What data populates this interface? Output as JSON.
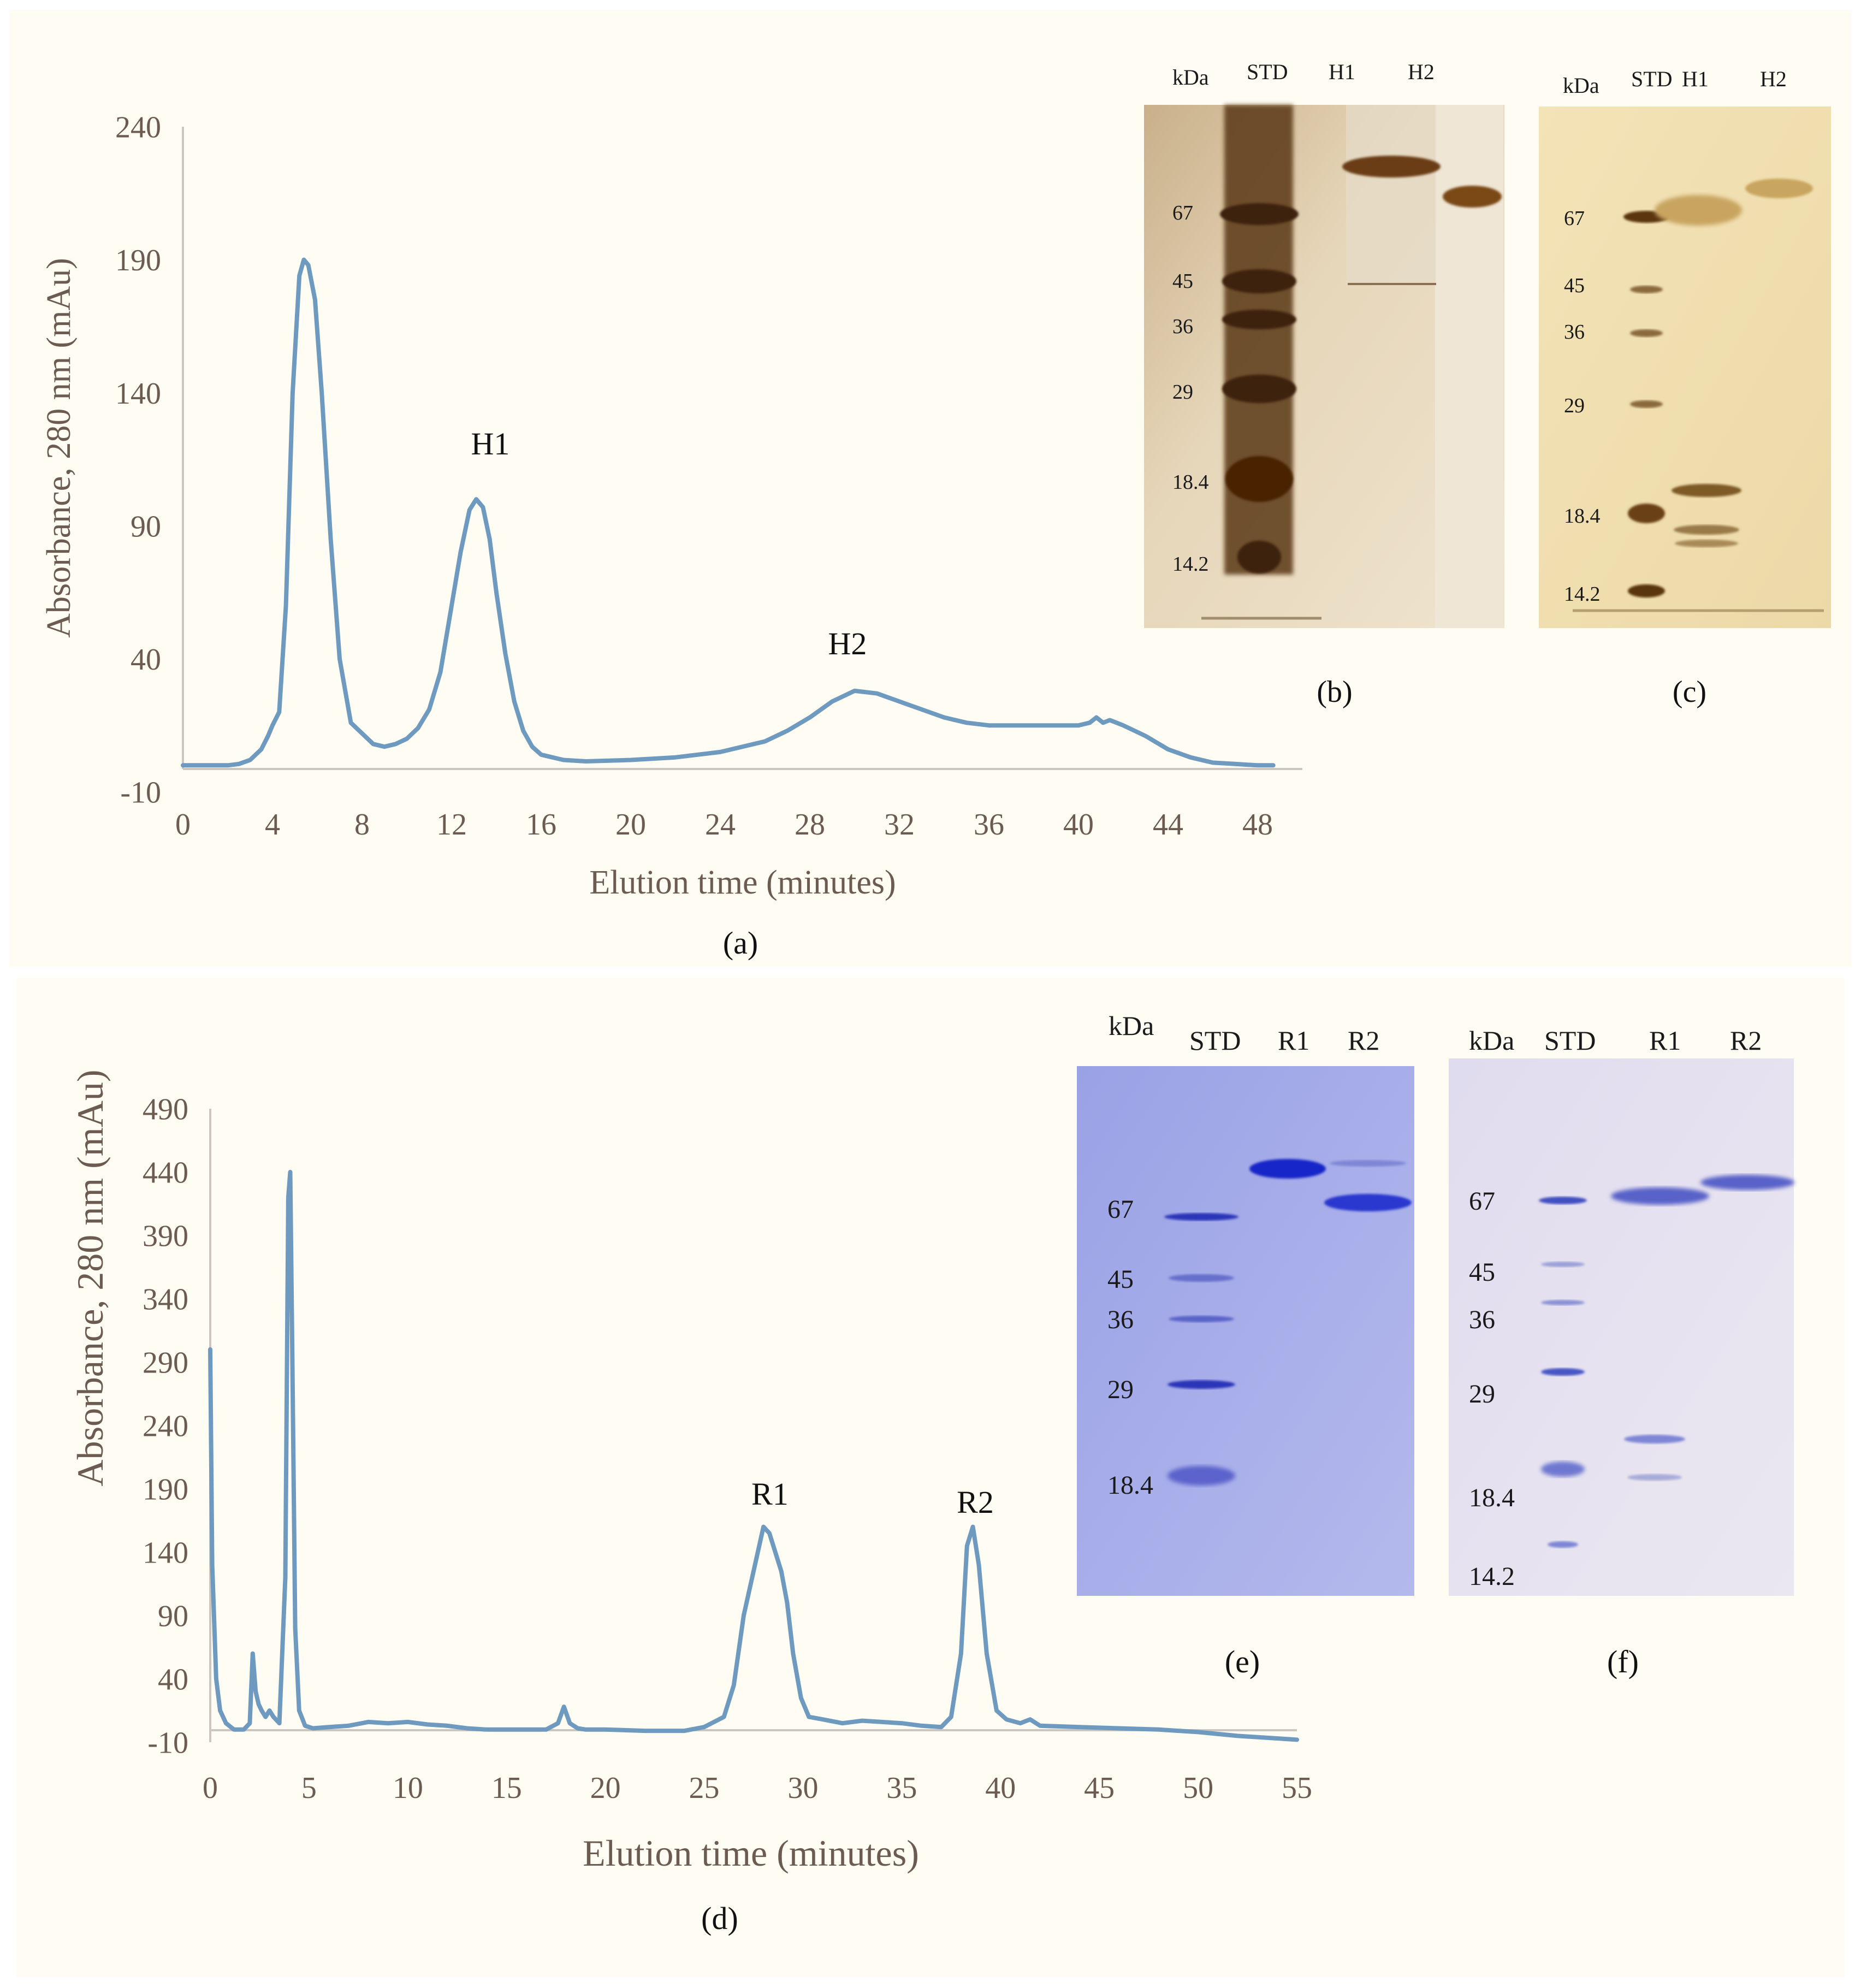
{
  "colors": {
    "panel_bg": "#fefcf3",
    "line": "#6f9ac0",
    "axis": "#c9c3bd",
    "axis_text": "#6b5b50",
    "silver_gel_bg": "#e8d9b9",
    "silver_gel_bg2": "#f1e1b6",
    "silver_band": "#6b3c12",
    "coomassie_bg": "#a9b0ea",
    "coomassie_bg2": "#e5e1ef",
    "coomassie_band": "#2f3dc8"
  },
  "panel_a": {
    "caption": "(a)",
    "chart_data": {
      "type": "line",
      "title": "",
      "xlabel": "Elution time (minutes)",
      "ylabel": "Absorbance, 280 nm (mAu)",
      "xlim": [
        0,
        50
      ],
      "ylim": [
        -10,
        240
      ],
      "xticks": [
        "0",
        "4",
        "8",
        "12",
        "16",
        "20",
        "24",
        "28",
        "32",
        "36",
        "40",
        "44",
        "48"
      ],
      "yticks": [
        "240",
        "190",
        "140",
        "90",
        "40",
        "-10"
      ],
      "annotations": [
        {
          "text": "H1",
          "x": 13.5,
          "y": 115
        },
        {
          "text": "H2",
          "x": 29.5,
          "y": 38
        }
      ],
      "series": [
        {
          "name": "A280",
          "x": [
            0,
            1,
            2,
            2.5,
            3,
            3.5,
            3.8,
            4,
            4.3,
            4.6,
            4.9,
            5.2,
            5.4,
            5.6,
            5.9,
            6.2,
            6.6,
            7.0,
            7.5,
            8,
            8.5,
            9,
            9.5,
            10,
            10.5,
            11,
            11.5,
            12,
            12.4,
            12.8,
            13.1,
            13.4,
            13.7,
            14.0,
            14.4,
            14.8,
            15.2,
            15.6,
            16,
            16.5,
            17,
            18,
            20,
            22,
            24,
            26,
            27,
            28,
            29,
            30,
            31,
            32,
            33,
            34,
            35,
            36,
            38,
            40,
            40.5,
            40.8,
            41.1,
            41.4,
            42,
            43,
            44,
            45,
            46,
            47,
            48,
            48.7
          ],
          "y": [
            0,
            0,
            0,
            0.5,
            2,
            6,
            11,
            15,
            20,
            60,
            140,
            184,
            190,
            188,
            175,
            140,
            85,
            40,
            16,
            12,
            8,
            7,
            8,
            10,
            14,
            21,
            35,
            60,
            80,
            96,
            100,
            97,
            85,
            65,
            42,
            24,
            13,
            7,
            4,
            3,
            2,
            1.5,
            2,
            3,
            5,
            9,
            13,
            18,
            24,
            28,
            27,
            24,
            21,
            18,
            16,
            15,
            15,
            15,
            16,
            18,
            16,
            17,
            15,
            11,
            6,
            3,
            1,
            0.5,
            0,
            0
          ]
        }
      ]
    }
  },
  "panel_b": {
    "caption": "(b)",
    "units_label": "kDa",
    "lanes": [
      "STD",
      "H1",
      "H2"
    ],
    "markers": [
      "67",
      "45",
      "36",
      "29",
      "18.4",
      "14.2"
    ]
  },
  "panel_c": {
    "caption": "(c)",
    "units_label": "kDa",
    "lanes": [
      "STD",
      "H1",
      "H2"
    ],
    "markers": [
      "67",
      "45",
      "36",
      "29",
      "18.4",
      "14.2"
    ]
  },
  "panel_d": {
    "caption": "(d)",
    "chart_data": {
      "type": "line",
      "title": "",
      "xlabel": "Elution time (minutes)",
      "ylabel": "Absorbance, 280 nm (mAu)",
      "xlim": [
        0,
        55
      ],
      "ylim": [
        -10,
        490
      ],
      "xticks": [
        "0",
        "5",
        "10",
        "15",
        "20",
        "25",
        "30",
        "35",
        "40",
        "45",
        "50",
        "55"
      ],
      "yticks": [
        "490",
        "440",
        "390",
        "340",
        "290",
        "240",
        "190",
        "140",
        "90",
        "40",
        "-10"
      ],
      "annotations": [
        {
          "text": "R1",
          "x": 28.2,
          "y": 180
        },
        {
          "text": "R2",
          "x": 38.8,
          "y": 173
        }
      ],
      "series": [
        {
          "name": "A280",
          "x": [
            0,
            0.1,
            0.3,
            0.5,
            0.8,
            1.2,
            1.7,
            2.0,
            2.15,
            2.3,
            2.45,
            2.6,
            2.8,
            3.0,
            3.2,
            3.5,
            3.8,
            3.95,
            4.05,
            4.15,
            4.3,
            4.5,
            4.8,
            5.2,
            6,
            7,
            8,
            9,
            10,
            11,
            12,
            13,
            14,
            15,
            16,
            17,
            17.6,
            17.9,
            18.2,
            18.6,
            19,
            20,
            22,
            24,
            25,
            26,
            26.5,
            27,
            27.5,
            28,
            28.3,
            28.6,
            28.9,
            29.2,
            29.5,
            29.9,
            30.3,
            31,
            32,
            33,
            34,
            35,
            36,
            37,
            37.5,
            38,
            38.3,
            38.6,
            38.9,
            39.3,
            39.8,
            40.3,
            41,
            41.5,
            42,
            44,
            46,
            48,
            50,
            52,
            54,
            55
          ],
          "y": [
            300,
            130,
            40,
            15,
            5,
            0,
            0,
            5,
            60,
            30,
            20,
            15,
            10,
            15,
            10,
            5,
            120,
            420,
            440,
            300,
            80,
            15,
            3,
            1,
            2,
            3,
            6,
            5,
            6,
            4,
            3,
            1,
            0,
            0,
            0,
            0,
            5,
            18,
            5,
            1,
            0,
            0,
            -1,
            -1,
            2,
            10,
            35,
            90,
            125,
            160,
            155,
            140,
            125,
            100,
            60,
            25,
            10,
            8,
            5,
            7,
            6,
            5,
            3,
            2,
            10,
            60,
            145,
            160,
            130,
            60,
            15,
            8,
            5,
            8,
            3,
            2,
            1,
            0,
            -2,
            -5,
            -7,
            -8
          ]
        }
      ]
    }
  },
  "panel_e": {
    "caption": "(e)",
    "units_label": "kDa",
    "lanes": [
      "STD",
      "R1",
      "R2"
    ],
    "markers": [
      "67",
      "45",
      "36",
      "29",
      "18.4"
    ]
  },
  "panel_f": {
    "caption": "(f)",
    "units_label": "kDa",
    "lanes": [
      "STD",
      "R1",
      "R2"
    ],
    "markers": [
      "67",
      "45",
      "36",
      "29",
      "18.4",
      "14.2"
    ]
  }
}
